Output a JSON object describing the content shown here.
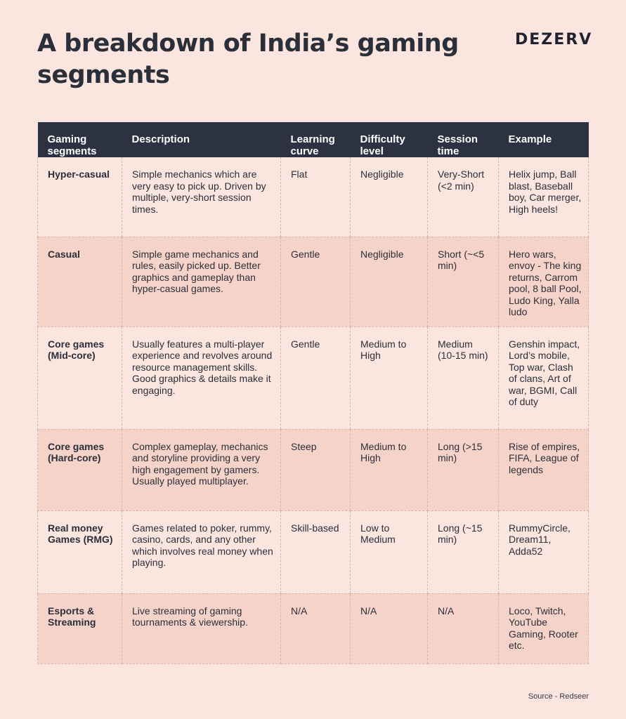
{
  "title": "A breakdown of India’s gaming segments",
  "brand": "DEZERV",
  "table": {
    "headers": [
      "Gaming segments",
      "Description",
      "Learning curve",
      "Difficulty level",
      "Session time",
      "Example"
    ],
    "rows": [
      [
        "Hyper-casual",
        "Simple mechanics which are very easy to pick up. Driven by multiple, very-short session times.",
        "Flat",
        "Negligible",
        "Very-Short (<2 min)",
        "Helix jump, Ball blast, Baseball boy, Car merger, High heels!"
      ],
      [
        "Casual",
        "Simple game mechanics and rules, easily picked up. Better graphics and gameplay than hyper-casual games.",
        "Gentle",
        "Negligible",
        "Short (~<5 min)",
        "Hero wars, envoy - The king returns, Carrom pool, 8 ball Pool, Ludo King, Yalla ludo"
      ],
      [
        "Core games (Mid-core)",
        "Usually features a multi-player experience and revolves around resource management skills. Good graphics & details make it engaging.",
        "Gentle",
        "Medium to High",
        "Medium (10-15 min)",
        "Genshin impact, Lord’s mobile, Top war, Clash of clans, Art of war, BGMI, Call of duty"
      ],
      [
        "Core games (Hard-core)",
        "Complex gameplay, mechanics and storyline providing a very high engagement by gamers. Usually played multiplayer.",
        "Steep",
        "Medium to High",
        "Long (>15 min)",
        "Rise of empires, FIFA, League of legends"
      ],
      [
        "Real money Games (RMG)",
        "Games related to poker, rummy, casino, cards, and any other which involves real money when playing.",
        "Skill-based",
        "Low to Medium",
        "Long (~15 min)",
        "RummyCircle, Dream11, Adda52"
      ],
      [
        "Esports & Streaming",
        "Live streaming of gaming tournaments & viewership.",
        "N/A",
        "N/A",
        "N/A",
        "Loco, Twitch, YouTube Gaming, Rooter etc."
      ]
    ]
  },
  "source": "Source - Redseer",
  "colors": {
    "background": "#fbe5df",
    "row_alt": "#f6d3c8",
    "header_bg": "#2d3242",
    "text": "#2b2f3a"
  }
}
